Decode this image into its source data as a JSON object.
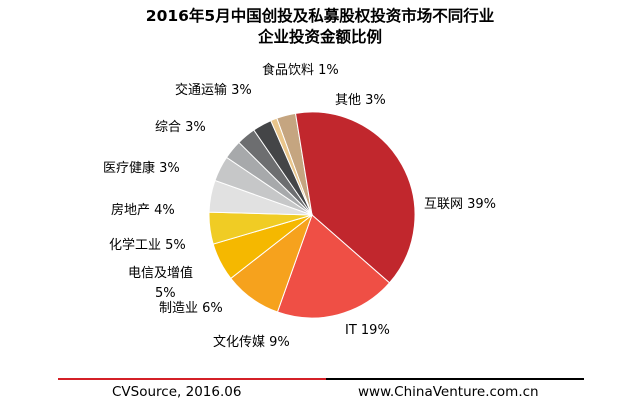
{
  "title_line1": "2016年5月中国创投及私募股权投资市场不同行业",
  "title_line2": "企业投资金额比例",
  "footer": {
    "source": "CVSource, 2016.06",
    "site": "www.ChinaVenture.com.cn"
  },
  "chart_data": {
    "type": "pie",
    "title": "2016年5月中国创投及私募股权投资市场不同行业企业投资金额比例",
    "slices": [
      {
        "label": "互联网",
        "value": 39,
        "color": "#c1272d"
      },
      {
        "label": "IT",
        "value": 19,
        "color": "#ef4f45"
      },
      {
        "label": "文化传媒",
        "value": 9,
        "color": "#f6a21d"
      },
      {
        "label": "制造业",
        "value": 6,
        "color": "#f5b800"
      },
      {
        "label": "电信及增值",
        "value": 5,
        "color": "#f0cc24"
      },
      {
        "label": "化学工业",
        "value": 5,
        "color": "#e1e1e1"
      },
      {
        "label": "房地产",
        "value": 4,
        "color": "#c6c7c8"
      },
      {
        "label": "医疗健康",
        "value": 3,
        "color": "#a7a9ab"
      },
      {
        "label": "综合",
        "value": 3,
        "color": "#6d6e70"
      },
      {
        "label": "交通运输",
        "value": 3,
        "color": "#444547"
      },
      {
        "label": "食品饮料",
        "value": 1,
        "color": "#e9c58b"
      },
      {
        "label": "其他",
        "value": 3,
        "color": "#c5a580"
      }
    ],
    "display_labels": [
      {
        "text": "互联网 39%"
      },
      {
        "text": "IT 19%"
      },
      {
        "text": "文化传媒 9%"
      },
      {
        "text": "制造业 6%"
      },
      {
        "text": "电信及增值"
      },
      {
        "text": "5%"
      },
      {
        "text": "化学工业 5%"
      },
      {
        "text": "房地产 4%"
      },
      {
        "text": "医疗健康 3%"
      },
      {
        "text": "综合 3%"
      },
      {
        "text": "交通运输 3%"
      },
      {
        "text": "食品饮料 1%"
      },
      {
        "text": "其他 3%"
      }
    ]
  }
}
